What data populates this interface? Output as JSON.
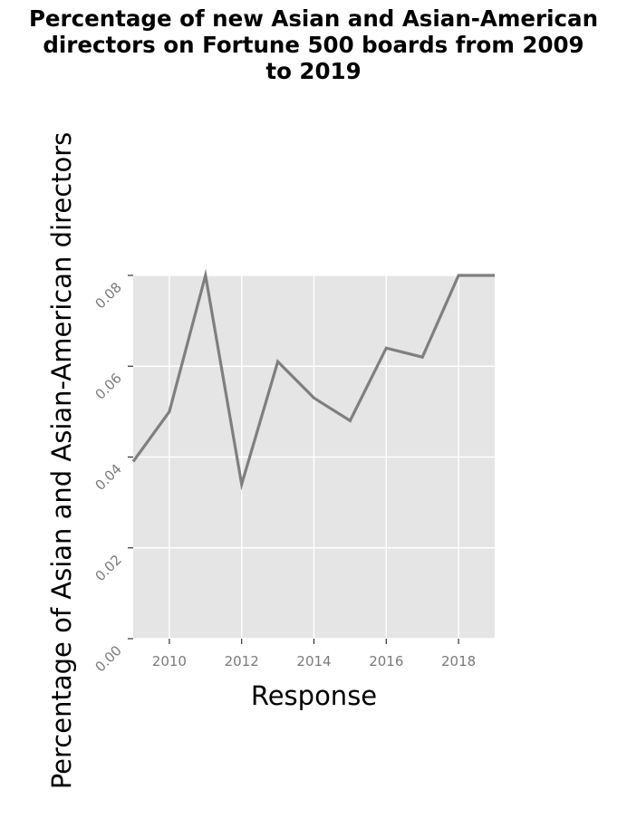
{
  "chart_data": {
    "type": "line",
    "title_lines": [
      "Percentage of new Asian and Asian-American",
      "directors on Fortune 500 boards from 2009",
      "to 2019"
    ],
    "xlabel": "Response",
    "ylabel": "Percentage of Asian and Asian-American directors",
    "x": [
      2009,
      2010,
      2011,
      2012,
      2013,
      2014,
      2015,
      2016,
      2017,
      2018,
      2019
    ],
    "series": [
      {
        "values": [
          0.039,
          0.05,
          0.08,
          0.034,
          0.061,
          0.053,
          0.048,
          0.064,
          0.062,
          0.08,
          0.08
        ]
      }
    ],
    "xlim": [
      2009,
      2019
    ],
    "ylim": [
      0,
      0.08
    ],
    "xticks": [
      2010,
      2012,
      2014,
      2016,
      2018
    ],
    "xtick_labels": [
      "2010",
      "2012",
      "2014",
      "2016",
      "2018"
    ],
    "yticks": [
      0,
      0.02,
      0.04,
      0.06,
      0.08
    ],
    "ytick_labels": [
      "0.00",
      "0.02",
      "0.04",
      "0.06",
      "0.08"
    ],
    "grid": true,
    "colors": {
      "background": "#e5e5e5",
      "grid": "#ffffff",
      "line": "#7f7f7f",
      "tick_text": "#7a7a7a"
    }
  }
}
